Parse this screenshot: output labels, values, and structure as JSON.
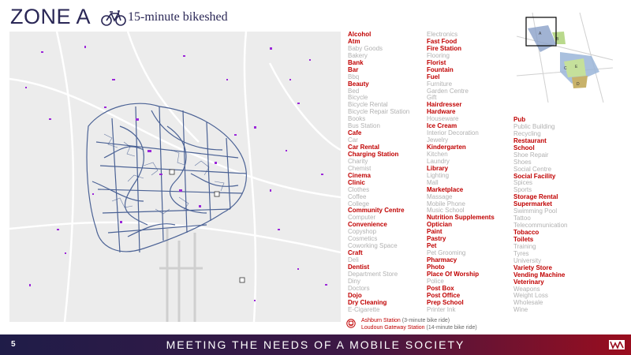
{
  "header": {
    "title": "ZONE A",
    "subtitle": "15-minute bikeshed",
    "icon": "bicycle-icon"
  },
  "amenities_col1": [
    {
      "label": "Alcohol",
      "present": true
    },
    {
      "label": "Atm",
      "present": true
    },
    {
      "label": "Baby Goods",
      "present": false
    },
    {
      "label": "Bakery",
      "present": false
    },
    {
      "label": "Bank",
      "present": true
    },
    {
      "label": "Bar",
      "present": true
    },
    {
      "label": "Bbq",
      "present": false
    },
    {
      "label": "Beauty",
      "present": true
    },
    {
      "label": "Bed",
      "present": false
    },
    {
      "label": "Bicycle",
      "present": false
    },
    {
      "label": "Bicycle Rental",
      "present": false
    },
    {
      "label": "Bicycle Repair Station",
      "present": false
    },
    {
      "label": "Books",
      "present": false
    },
    {
      "label": "Bus Station",
      "present": false
    },
    {
      "label": "Cafe",
      "present": true
    },
    {
      "label": "Car",
      "present": false
    },
    {
      "label": "Car Rental",
      "present": true
    },
    {
      "label": "Charging Station",
      "present": true
    },
    {
      "label": "Charity",
      "present": false
    },
    {
      "label": "Chemist",
      "present": false
    },
    {
      "label": "Cinema",
      "present": true
    },
    {
      "label": "Clinic",
      "present": true
    },
    {
      "label": "Clothes",
      "present": false
    },
    {
      "label": "Coffee",
      "present": false
    },
    {
      "label": "College",
      "present": false
    },
    {
      "label": "Community Centre",
      "present": true
    },
    {
      "label": "Computer",
      "present": false
    },
    {
      "label": "Convenience",
      "present": true
    },
    {
      "label": "Copyshop",
      "present": false
    },
    {
      "label": "Cosmetics",
      "present": false
    },
    {
      "label": "Coworking Space",
      "present": false
    },
    {
      "label": "Craft",
      "present": true
    },
    {
      "label": "Deli",
      "present": false
    },
    {
      "label": "Dentist",
      "present": true
    },
    {
      "label": "Department Store",
      "present": false
    },
    {
      "label": "Diny",
      "present": false
    },
    {
      "label": "Doctors",
      "present": false
    },
    {
      "label": "Dojo",
      "present": true
    },
    {
      "label": "Dry Cleaning",
      "present": true
    },
    {
      "label": "E-Cigarette",
      "present": false
    }
  ],
  "amenities_col2": [
    {
      "label": "Electronics",
      "present": false
    },
    {
      "label": "Fast Food",
      "present": true
    },
    {
      "label": "Fire Station",
      "present": true
    },
    {
      "label": "Flooring",
      "present": false
    },
    {
      "label": "Florist",
      "present": true
    },
    {
      "label": "Fountain",
      "present": true
    },
    {
      "label": "Fuel",
      "present": true
    },
    {
      "label": "Furniture",
      "present": false
    },
    {
      "label": "Garden Centre",
      "present": false
    },
    {
      "label": "Gift",
      "present": false
    },
    {
      "label": "Hairdresser",
      "present": true
    },
    {
      "label": "Hardware",
      "present": true
    },
    {
      "label": "Houseware",
      "present": false
    },
    {
      "label": "Ice Cream",
      "present": true
    },
    {
      "label": "Interior Decoration",
      "present": false
    },
    {
      "label": "Jewelry",
      "present": false
    },
    {
      "label": "Kindergarten",
      "present": true
    },
    {
      "label": "Kitchen",
      "present": false
    },
    {
      "label": "Laundry",
      "present": false
    },
    {
      "label": "Library",
      "present": true
    },
    {
      "label": "Lighting",
      "present": false
    },
    {
      "label": "Mall",
      "present": false
    },
    {
      "label": "Marketplace",
      "present": true
    },
    {
      "label": "Massage",
      "present": false
    },
    {
      "label": "Mobile Phone",
      "present": false
    },
    {
      "label": "Music School",
      "present": false
    },
    {
      "label": "Nutrition Supplements",
      "present": true
    },
    {
      "label": "Optician",
      "present": true
    },
    {
      "label": "Paint",
      "present": true
    },
    {
      "label": "Pastry",
      "present": true
    },
    {
      "label": "Pet",
      "present": true
    },
    {
      "label": "Pet Grooming",
      "present": false
    },
    {
      "label": "Pharmacy",
      "present": true
    },
    {
      "label": "Photo",
      "present": true
    },
    {
      "label": "Place Of Worship",
      "present": true
    },
    {
      "label": "Police",
      "present": false
    },
    {
      "label": "Post Box",
      "present": true
    },
    {
      "label": "Post Office",
      "present": true
    },
    {
      "label": "Prep School",
      "present": true
    },
    {
      "label": "Printer Ink",
      "present": false
    }
  ],
  "amenities_col3": [
    {
      "label": "Pub",
      "present": true
    },
    {
      "label": "Public Building",
      "present": false
    },
    {
      "label": "Recycling",
      "present": false
    },
    {
      "label": "Restaurant",
      "present": true
    },
    {
      "label": "School",
      "present": true
    },
    {
      "label": "Shoe Repair",
      "present": false
    },
    {
      "label": "Shoes",
      "present": false
    },
    {
      "label": "Social Centre",
      "present": false
    },
    {
      "label": "Social Facility",
      "present": true
    },
    {
      "label": "Spices",
      "present": false
    },
    {
      "label": "Sports",
      "present": false
    },
    {
      "label": "Storage Rental",
      "present": true
    },
    {
      "label": "Supermarket",
      "present": true
    },
    {
      "label": "Swimming Pool",
      "present": false
    },
    {
      "label": "Tattoo",
      "present": false
    },
    {
      "label": "Telecommunication",
      "present": false
    },
    {
      "label": "Tobacco",
      "present": true
    },
    {
      "label": "Toilets",
      "present": true
    },
    {
      "label": "Training",
      "present": false
    },
    {
      "label": "Tyres",
      "present": false
    },
    {
      "label": "University",
      "present": false
    },
    {
      "label": "Variety Store",
      "present": true
    },
    {
      "label": "Vending Machine",
      "present": true
    },
    {
      "label": "Veterinary",
      "present": true
    },
    {
      "label": "Weapons",
      "present": false
    },
    {
      "label": "Weight Loss",
      "present": false
    },
    {
      "label": "Wholesale",
      "present": false
    },
    {
      "label": "Wine",
      "present": false
    }
  ],
  "legend": {
    "station1_name": "Ashburn Station",
    "station1_note": "(3-minute bike ride)",
    "station2_name": "Loudoun Gateway Station",
    "station2_note": "(14-minute bike ride)",
    "icon": "metro-station-icon"
  },
  "inset": {
    "zones": [
      "A",
      "B",
      "C",
      "D",
      "E"
    ]
  },
  "footer": {
    "page_number": "5",
    "tagline": "MEETING THE NEEDS OF A MOBILE SOCIETY",
    "logo": "company-logo-icon"
  },
  "colors": {
    "present": "#c00000",
    "absent": "#b1b1b1",
    "routes": "#2f4a86",
    "poi": "#9b27d9",
    "footer_start": "#1f1c48",
    "footer_end": "#9a0d1e"
  }
}
